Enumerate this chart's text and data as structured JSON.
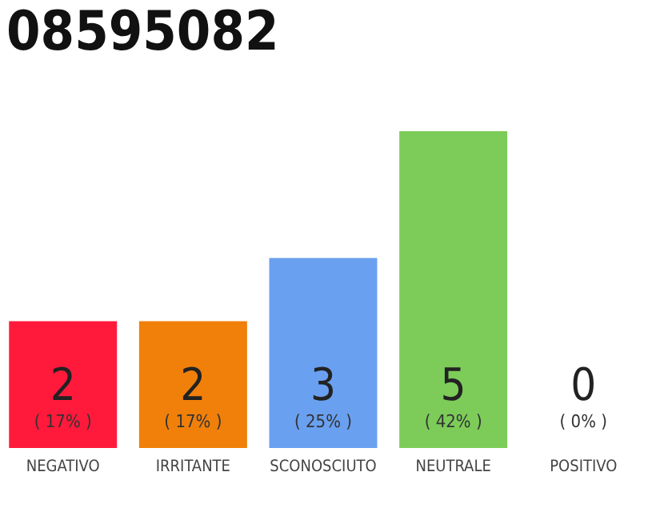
{
  "chart_data": {
    "type": "bar",
    "title": "08595082",
    "categories": [
      "NEGATIVO",
      "IRRITANTE",
      "SCONOSCIUTO",
      "NEUTRALE",
      "POSITIVO"
    ],
    "values": [
      2,
      2,
      3,
      5,
      0
    ],
    "colors": [
      "#ff1a3c",
      "#f0800a",
      "#6aa0f0",
      "#7dcc5a",
      "#bdbdbd"
    ],
    "ylim": [
      0,
      5
    ],
    "tick_labels": "x",
    "data_labels": true,
    "grid": false,
    "legend": false,
    "annotations": [
      "( 17% )",
      "( 17% )",
      "( 25% )",
      "( 42% )",
      "( 0% )"
    ]
  }
}
